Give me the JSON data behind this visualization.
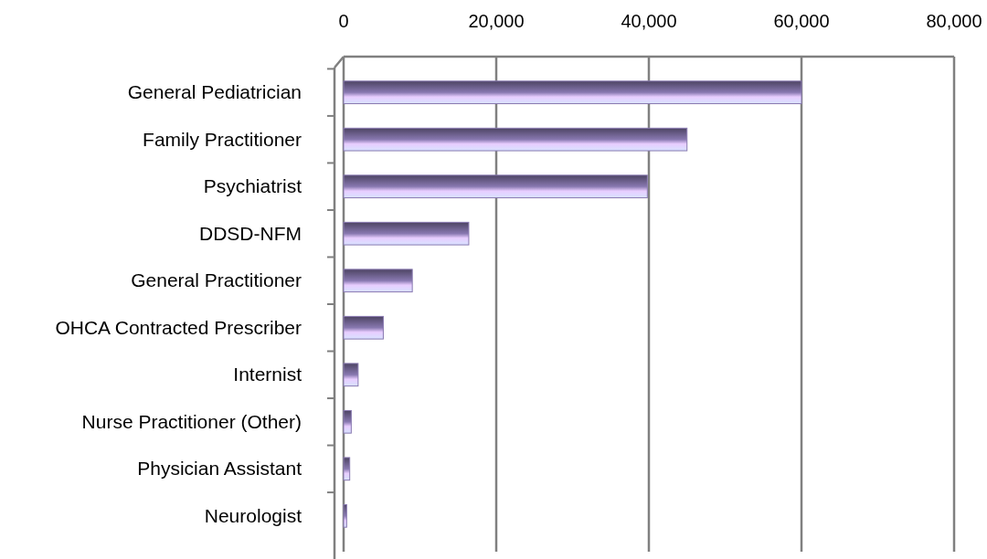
{
  "chart_data": {
    "type": "bar",
    "orientation": "horizontal",
    "categories": [
      "General Pediatrician",
      "Family Practitioner",
      "Psychiatrist",
      "DDSD-NFM",
      "General Practitioner",
      "OHCA Contracted Prescriber",
      "Internist",
      "Nurse Practitioner (Other)",
      "Physician Assistant",
      "Neurologist"
    ],
    "values": [
      60000,
      45000,
      39800,
      16400,
      9000,
      5200,
      1900,
      1000,
      800,
      400
    ],
    "color": "#8878b0",
    "xlim": [
      0,
      80000
    ],
    "xticks": [
      {
        "value": 0,
        "label": "0"
      },
      {
        "value": 20000,
        "label": "20,000"
      },
      {
        "value": 40000,
        "label": "40,000"
      },
      {
        "value": 60000,
        "label": "60,000"
      },
      {
        "value": 80000,
        "label": "80,000"
      }
    ],
    "grid": "x"
  }
}
